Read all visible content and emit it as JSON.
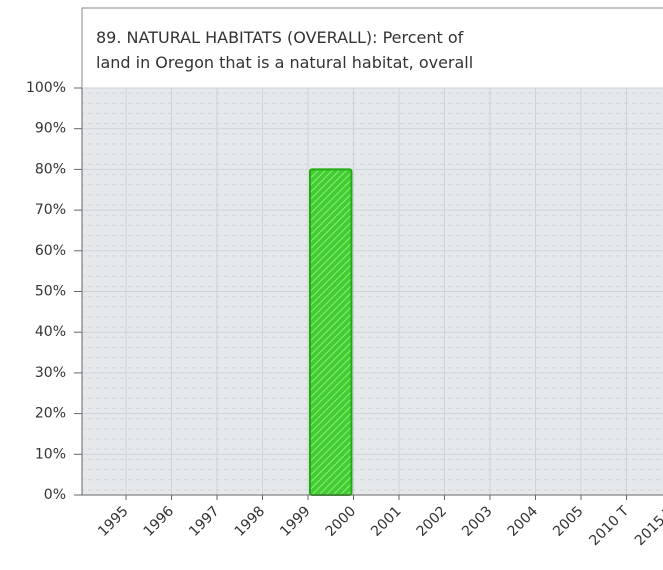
{
  "chart_data": {
    "type": "bar",
    "title": [
      "89. NATURAL HABITATS (OVERALL): Percent of",
      "land in Oregon that is a natural habitat, overall"
    ],
    "categories": [
      "1995",
      "1996",
      "1997",
      "1998",
      "1999",
      "2000",
      "2001",
      "2002",
      "2003",
      "2004",
      "2005",
      "2010 T",
      "2015 T"
    ],
    "values": [
      null,
      null,
      null,
      null,
      null,
      80,
      null,
      null,
      null,
      null,
      null,
      null,
      null
    ],
    "color": "#44cc33",
    "ylim": [
      0,
      100
    ],
    "yticks": [
      {
        "value": 0,
        "label": "0%"
      },
      {
        "value": 10,
        "label": "10%"
      },
      {
        "value": 20,
        "label": "20%"
      },
      {
        "value": 30,
        "label": "30%"
      },
      {
        "value": 40,
        "label": "40%"
      },
      {
        "value": 50,
        "label": "50%"
      },
      {
        "value": 60,
        "label": "60%"
      },
      {
        "value": 70,
        "label": "70%"
      },
      {
        "value": 80,
        "label": "80%"
      },
      {
        "value": 90,
        "label": "90%"
      },
      {
        "value": 100,
        "label": "100%"
      }
    ],
    "grid": true
  }
}
